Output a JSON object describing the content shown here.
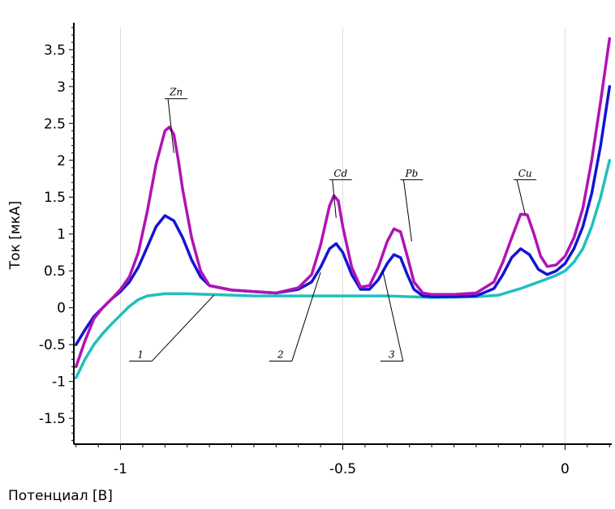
{
  "chart_data": {
    "type": "line",
    "title": "",
    "xlabel": "Потенциал [В]",
    "ylabel": "Ток [мкА]",
    "xlim": [
      -1.105,
      0.105
    ],
    "ylim": [
      -1.85,
      3.8
    ],
    "grid": true,
    "x_ticks": [
      -1,
      -0.5,
      0
    ],
    "x_tick_labels": [
      "-1",
      "-0.5",
      "0"
    ],
    "y_ticks": [
      -1.5,
      -1,
      -0.5,
      0,
      0.5,
      1,
      1.5,
      2,
      2.5,
      3,
      3.5
    ],
    "y_tick_labels": [
      "-1.5",
      "-1",
      "-0.5",
      "0",
      "0.5",
      "1",
      "1.5",
      "2",
      "2.5",
      "3",
      "3.5"
    ],
    "series": [
      {
        "color": "#1fbfbf",
        "x": [
          -1.1,
          -1.08,
          -1.06,
          -1.04,
          -1.02,
          -1.0,
          -0.98,
          -0.96,
          -0.94,
          -0.9,
          -0.85,
          -0.8,
          -0.7,
          -0.6,
          -0.5,
          -0.4,
          -0.3,
          -0.2,
          -0.15,
          -0.1,
          -0.05,
          -0.02,
          0.0,
          0.02,
          0.04,
          0.06,
          0.08,
          0.1
        ],
        "y": [
          -0.95,
          -0.7,
          -0.5,
          -0.35,
          -0.22,
          -0.1,
          0.02,
          0.11,
          0.16,
          0.19,
          0.19,
          0.18,
          0.16,
          0.16,
          0.16,
          0.16,
          0.14,
          0.15,
          0.17,
          0.26,
          0.37,
          0.44,
          0.5,
          0.62,
          0.8,
          1.1,
          1.5,
          2.0
        ]
      },
      {
        "color": "#1414d2",
        "x": [
          -1.1,
          -1.08,
          -1.06,
          -1.04,
          -1.02,
          -1.0,
          -0.98,
          -0.96,
          -0.94,
          -0.92,
          -0.9,
          -0.88,
          -0.86,
          -0.84,
          -0.82,
          -0.8,
          -0.75,
          -0.7,
          -0.65,
          -0.6,
          -0.57,
          -0.55,
          -0.53,
          -0.515,
          -0.5,
          -0.48,
          -0.46,
          -0.44,
          -0.42,
          -0.4,
          -0.385,
          -0.37,
          -0.355,
          -0.34,
          -0.32,
          -0.3,
          -0.25,
          -0.2,
          -0.16,
          -0.14,
          -0.12,
          -0.1,
          -0.08,
          -0.06,
          -0.04,
          -0.02,
          0.0,
          0.02,
          0.04,
          0.06,
          0.08,
          0.1
        ],
        "y": [
          -0.5,
          -0.3,
          -0.12,
          0.0,
          0.12,
          0.22,
          0.35,
          0.55,
          0.82,
          1.1,
          1.25,
          1.18,
          0.95,
          0.65,
          0.42,
          0.3,
          0.24,
          0.22,
          0.2,
          0.25,
          0.35,
          0.55,
          0.8,
          0.87,
          0.75,
          0.45,
          0.25,
          0.25,
          0.38,
          0.6,
          0.72,
          0.68,
          0.45,
          0.25,
          0.16,
          0.15,
          0.15,
          0.16,
          0.26,
          0.45,
          0.68,
          0.8,
          0.72,
          0.52,
          0.45,
          0.5,
          0.6,
          0.8,
          1.1,
          1.55,
          2.2,
          3.0
        ]
      },
      {
        "color": "#b014b4",
        "x": [
          -1.1,
          -1.08,
          -1.06,
          -1.04,
          -1.02,
          -1.0,
          -0.98,
          -0.96,
          -0.94,
          -0.92,
          -0.9,
          -0.89,
          -0.88,
          -0.87,
          -0.86,
          -0.84,
          -0.82,
          -0.8,
          -0.75,
          -0.7,
          -0.65,
          -0.6,
          -0.57,
          -0.55,
          -0.53,
          -0.52,
          -0.51,
          -0.5,
          -0.48,
          -0.46,
          -0.44,
          -0.42,
          -0.4,
          -0.385,
          -0.37,
          -0.355,
          -0.34,
          -0.32,
          -0.3,
          -0.25,
          -0.2,
          -0.16,
          -0.14,
          -0.12,
          -0.1,
          -0.085,
          -0.07,
          -0.055,
          -0.04,
          -0.02,
          0.0,
          0.02,
          0.04,
          0.06,
          0.08,
          0.1
        ],
        "y": [
          -0.8,
          -0.45,
          -0.15,
          0.0,
          0.12,
          0.25,
          0.42,
          0.75,
          1.3,
          1.95,
          2.4,
          2.45,
          2.35,
          2.0,
          1.6,
          0.95,
          0.5,
          0.3,
          0.24,
          0.22,
          0.2,
          0.27,
          0.45,
          0.85,
          1.38,
          1.52,
          1.45,
          1.1,
          0.55,
          0.28,
          0.3,
          0.55,
          0.9,
          1.07,
          1.03,
          0.7,
          0.35,
          0.2,
          0.18,
          0.18,
          0.2,
          0.35,
          0.62,
          0.95,
          1.27,
          1.26,
          1.0,
          0.7,
          0.56,
          0.58,
          0.7,
          0.95,
          1.35,
          2.0,
          2.8,
          3.65
        ]
      }
    ],
    "annotations": [
      {
        "text": "Zn",
        "x": -0.875,
        "y": 2.88,
        "target_x": -0.88,
        "target_y": 2.1
      },
      {
        "text": "Cd",
        "x": -0.505,
        "y": 1.78,
        "target_x": -0.515,
        "target_y": 1.22
      },
      {
        "text": "Pb",
        "x": -0.345,
        "y": 1.78,
        "target_x": -0.345,
        "target_y": 0.9
      },
      {
        "text": "Cu",
        "x": -0.09,
        "y": 1.78,
        "target_x": -0.09,
        "target_y": 1.27
      },
      {
        "text": "1",
        "x": -0.955,
        "y": -0.68,
        "target_x": -0.79,
        "target_y": 0.17
      },
      {
        "text": "2",
        "x": -0.64,
        "y": -0.68,
        "target_x": -0.55,
        "target_y": 0.48
      },
      {
        "text": "3",
        "x": -0.39,
        "y": -0.68,
        "target_x": -0.41,
        "target_y": 0.5
      }
    ]
  }
}
